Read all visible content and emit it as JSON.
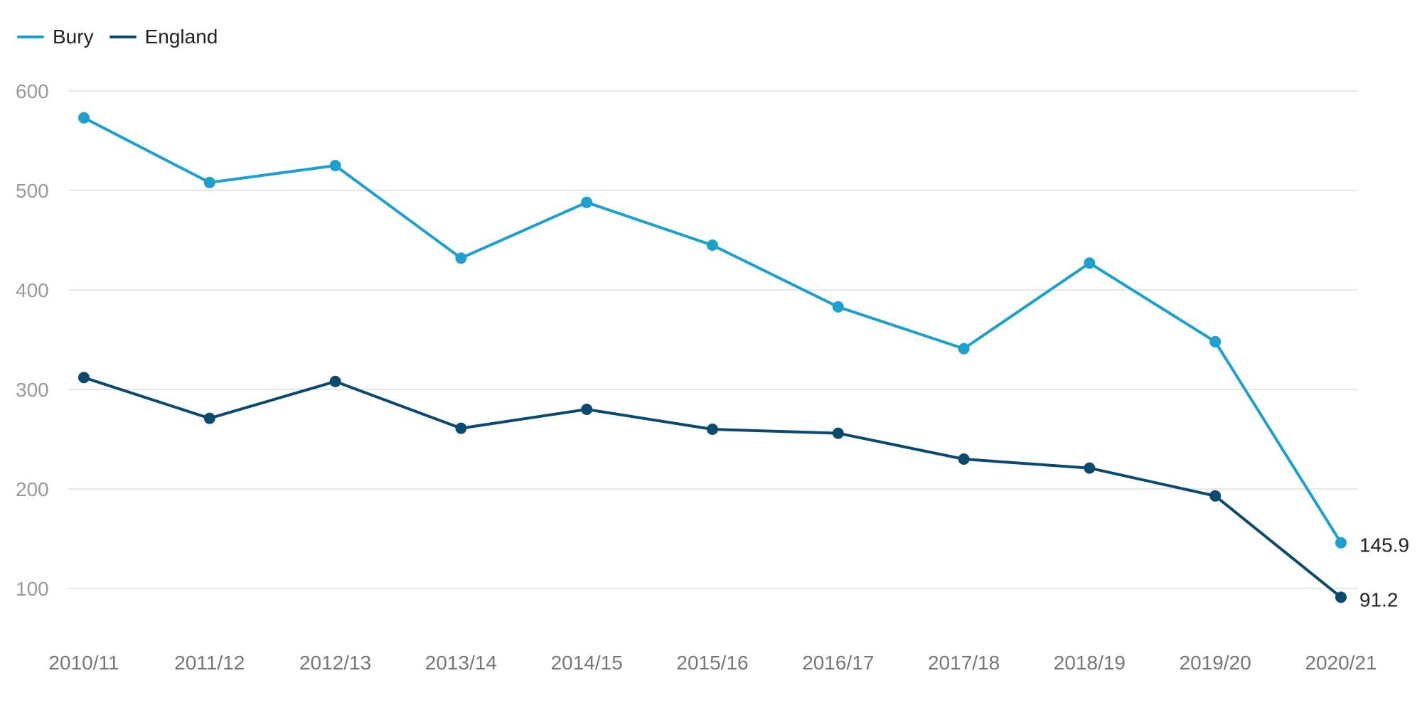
{
  "legend": [
    {
      "name": "Bury",
      "color": "#1ca1cf"
    },
    {
      "name": "England",
      "color": "#0b4a70"
    }
  ],
  "chart_data": {
    "type": "line",
    "categories": [
      "2010/11",
      "2011/12",
      "2012/13",
      "2013/14",
      "2014/15",
      "2015/16",
      "2016/17",
      "2017/18",
      "2018/19",
      "2019/20",
      "2020/21"
    ],
    "series": [
      {
        "name": "Bury",
        "color": "#1ca1cf",
        "values": [
          573,
          508,
          525,
          432,
          488,
          445,
          383,
          341,
          427,
          348,
          145.9
        ]
      },
      {
        "name": "England",
        "color": "#0b4a70",
        "values": [
          312,
          271,
          308,
          261,
          280,
          260,
          256,
          230,
          221,
          193,
          91.2
        ]
      }
    ],
    "end_labels": [
      "145.9",
      "91.2"
    ],
    "yticks": [
      100,
      200,
      300,
      400,
      500,
      600
    ],
    "ylim": [
      100,
      600
    ],
    "grid": true,
    "legend_position": "top-left",
    "title": "",
    "xlabel": "",
    "ylabel": ""
  }
}
